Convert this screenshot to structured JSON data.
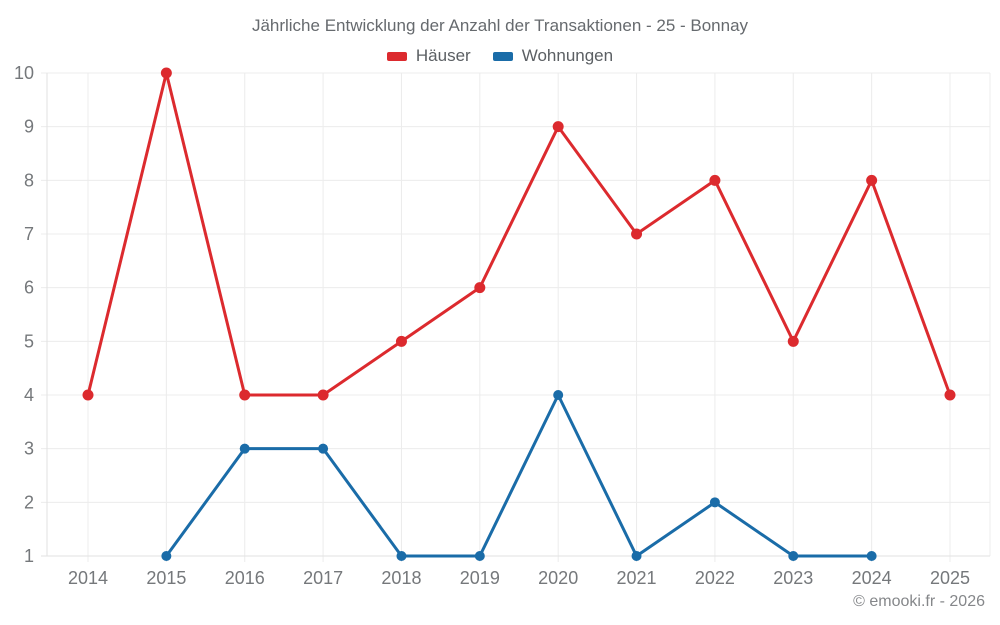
{
  "header": {
    "title": "Jährliche Entwicklung der Anzahl der Transaktionen - 25 - Bonnay"
  },
  "footer": {
    "copyright": "© emooki.fr - 2026"
  },
  "colors": {
    "hauser_red": "#dc2a2e",
    "wohnungen_blue": "#1a6ca8",
    "gridline": "#ececec",
    "axis_border": "#e2e2e2",
    "tick_label": "#75787b",
    "title_text": "#666a6e"
  },
  "chart_data": {
    "type": "line",
    "title": "Jährliche Entwicklung der Anzahl der Transaktionen - 25 - Bonnay",
    "categories": [
      "2014",
      "2015",
      "2016",
      "2017",
      "2018",
      "2019",
      "2020",
      "2021",
      "2022",
      "2023",
      "2024",
      "2025"
    ],
    "series": [
      {
        "name": "Häuser",
        "color": "#dc2a2e",
        "values": [
          4,
          10,
          4,
          4,
          5,
          6,
          9,
          7,
          8,
          5,
          8,
          4
        ]
      },
      {
        "name": "Wohnungen",
        "color": "#1a6ca8",
        "values": [
          null,
          1,
          3,
          3,
          1,
          1,
          4,
          1,
          2,
          1,
          1,
          null
        ]
      }
    ],
    "xlabel": "",
    "ylabel": "",
    "ylim": [
      1,
      10
    ],
    "y_ticks": [
      1,
      2,
      3,
      4,
      5,
      6,
      7,
      8,
      9,
      10
    ],
    "grid": true,
    "legend_position": "top"
  }
}
